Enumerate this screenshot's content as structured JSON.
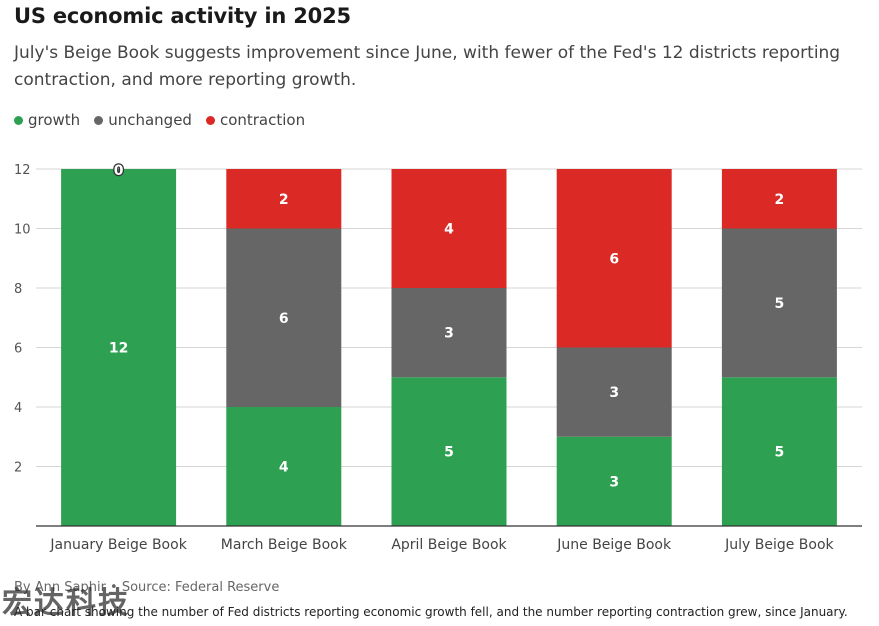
{
  "header": {
    "title": "US economic activity in 2025",
    "subtitle": "July's Beige Book suggests improvement since June, with fewer of the Fed's 12 districts reporting contraction, and more reporting growth."
  },
  "legend": [
    {
      "label": "growth",
      "color": "#2ea052"
    },
    {
      "label": "unchanged",
      "color": "#666666"
    },
    {
      "label": "contraction",
      "color": "#db2a26"
    }
  ],
  "chart_data": {
    "type": "bar",
    "stacked": true,
    "categories": [
      "January Beige Book",
      "March Beige Book",
      "April Beige Book",
      "June Beige Book",
      "July Beige Book"
    ],
    "series": [
      {
        "name": "growth",
        "color": "#2ea052",
        "values": [
          12,
          4,
          5,
          3,
          5
        ]
      },
      {
        "name": "unchanged",
        "color": "#666666",
        "values": [
          0,
          6,
          3,
          3,
          5
        ]
      },
      {
        "name": "contraction",
        "color": "#db2a26",
        "values": [
          0,
          2,
          4,
          6,
          2
        ]
      }
    ],
    "top_label": "0",
    "ylim": [
      0,
      12
    ],
    "yticks": [
      2,
      4,
      6,
      8,
      10,
      12
    ],
    "grid": true,
    "legend_position": "top-left"
  },
  "footer": {
    "byline": "By Ann Saphir • Source: Federal Reserve",
    "caption": "A bar chart showing the number of Fed districts reporting economic growth fell, and the number reporting contraction grew, since January."
  },
  "watermark": "宏达科技"
}
